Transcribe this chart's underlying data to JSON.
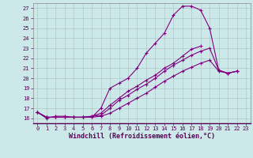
{
  "xlabel": "Windchill (Refroidissement éolien,°C)",
  "background_color": "#cde8e8",
  "line_color": "#800080",
  "grid_color": "#b0c8c8",
  "xlim": [
    -0.5,
    23.5
  ],
  "ylim": [
    15.5,
    27.5
  ],
  "xticks": [
    0,
    1,
    2,
    3,
    4,
    5,
    6,
    7,
    8,
    9,
    10,
    11,
    12,
    13,
    14,
    15,
    16,
    17,
    18,
    19,
    20,
    21,
    22,
    23
  ],
  "yticks": [
    16,
    17,
    18,
    19,
    20,
    21,
    22,
    23,
    24,
    25,
    26,
    27
  ],
  "lines": [
    {
      "x": [
        0,
        1,
        2,
        3,
        4,
        5,
        6,
        7,
        8,
        9,
        10,
        11,
        12,
        13,
        14,
        15,
        16,
        17,
        18,
        19,
        20,
        21,
        22
      ],
      "y": [
        16.6,
        16.0,
        16.2,
        16.2,
        16.1,
        16.1,
        16.1,
        17.0,
        19.0,
        19.5,
        20.0,
        21.0,
        22.5,
        23.5,
        24.5,
        26.3,
        27.2,
        27.2,
        26.8,
        25.0,
        20.8,
        20.5,
        20.7
      ]
    },
    {
      "x": [
        0,
        1,
        2,
        3,
        4,
        5,
        6,
        7,
        8,
        9,
        10,
        11,
        12,
        13,
        14,
        15,
        16,
        17,
        18,
        19,
        20,
        21,
        22
      ],
      "y": [
        16.6,
        16.1,
        16.1,
        16.1,
        16.1,
        16.1,
        16.2,
        16.3,
        17.0,
        17.8,
        18.3,
        18.9,
        19.4,
        20.0,
        20.7,
        21.3,
        21.8,
        22.3,
        22.7,
        23.0,
        20.8,
        20.5,
        20.7
      ]
    },
    {
      "x": [
        0,
        1,
        2,
        3,
        4,
        5,
        6,
        7,
        8,
        9,
        10,
        11,
        12,
        13,
        14,
        15,
        16,
        17,
        18,
        19,
        20,
        21,
        22
      ],
      "y": [
        16.6,
        16.1,
        16.1,
        16.1,
        16.1,
        16.1,
        16.1,
        16.2,
        16.5,
        17.0,
        17.5,
        18.0,
        18.5,
        19.1,
        19.7,
        20.2,
        20.7,
        21.1,
        21.5,
        21.8,
        20.7,
        20.5,
        20.7
      ]
    },
    {
      "x": [
        0,
        1,
        2,
        3,
        4,
        5,
        6,
        7,
        8,
        9,
        10,
        11,
        12,
        13,
        14,
        15,
        16,
        17,
        18
      ],
      "y": [
        16.6,
        16.1,
        16.1,
        16.1,
        16.1,
        16.1,
        16.2,
        16.5,
        17.3,
        18.0,
        18.7,
        19.2,
        19.8,
        20.3,
        21.0,
        21.5,
        22.2,
        22.9,
        23.2
      ]
    }
  ]
}
